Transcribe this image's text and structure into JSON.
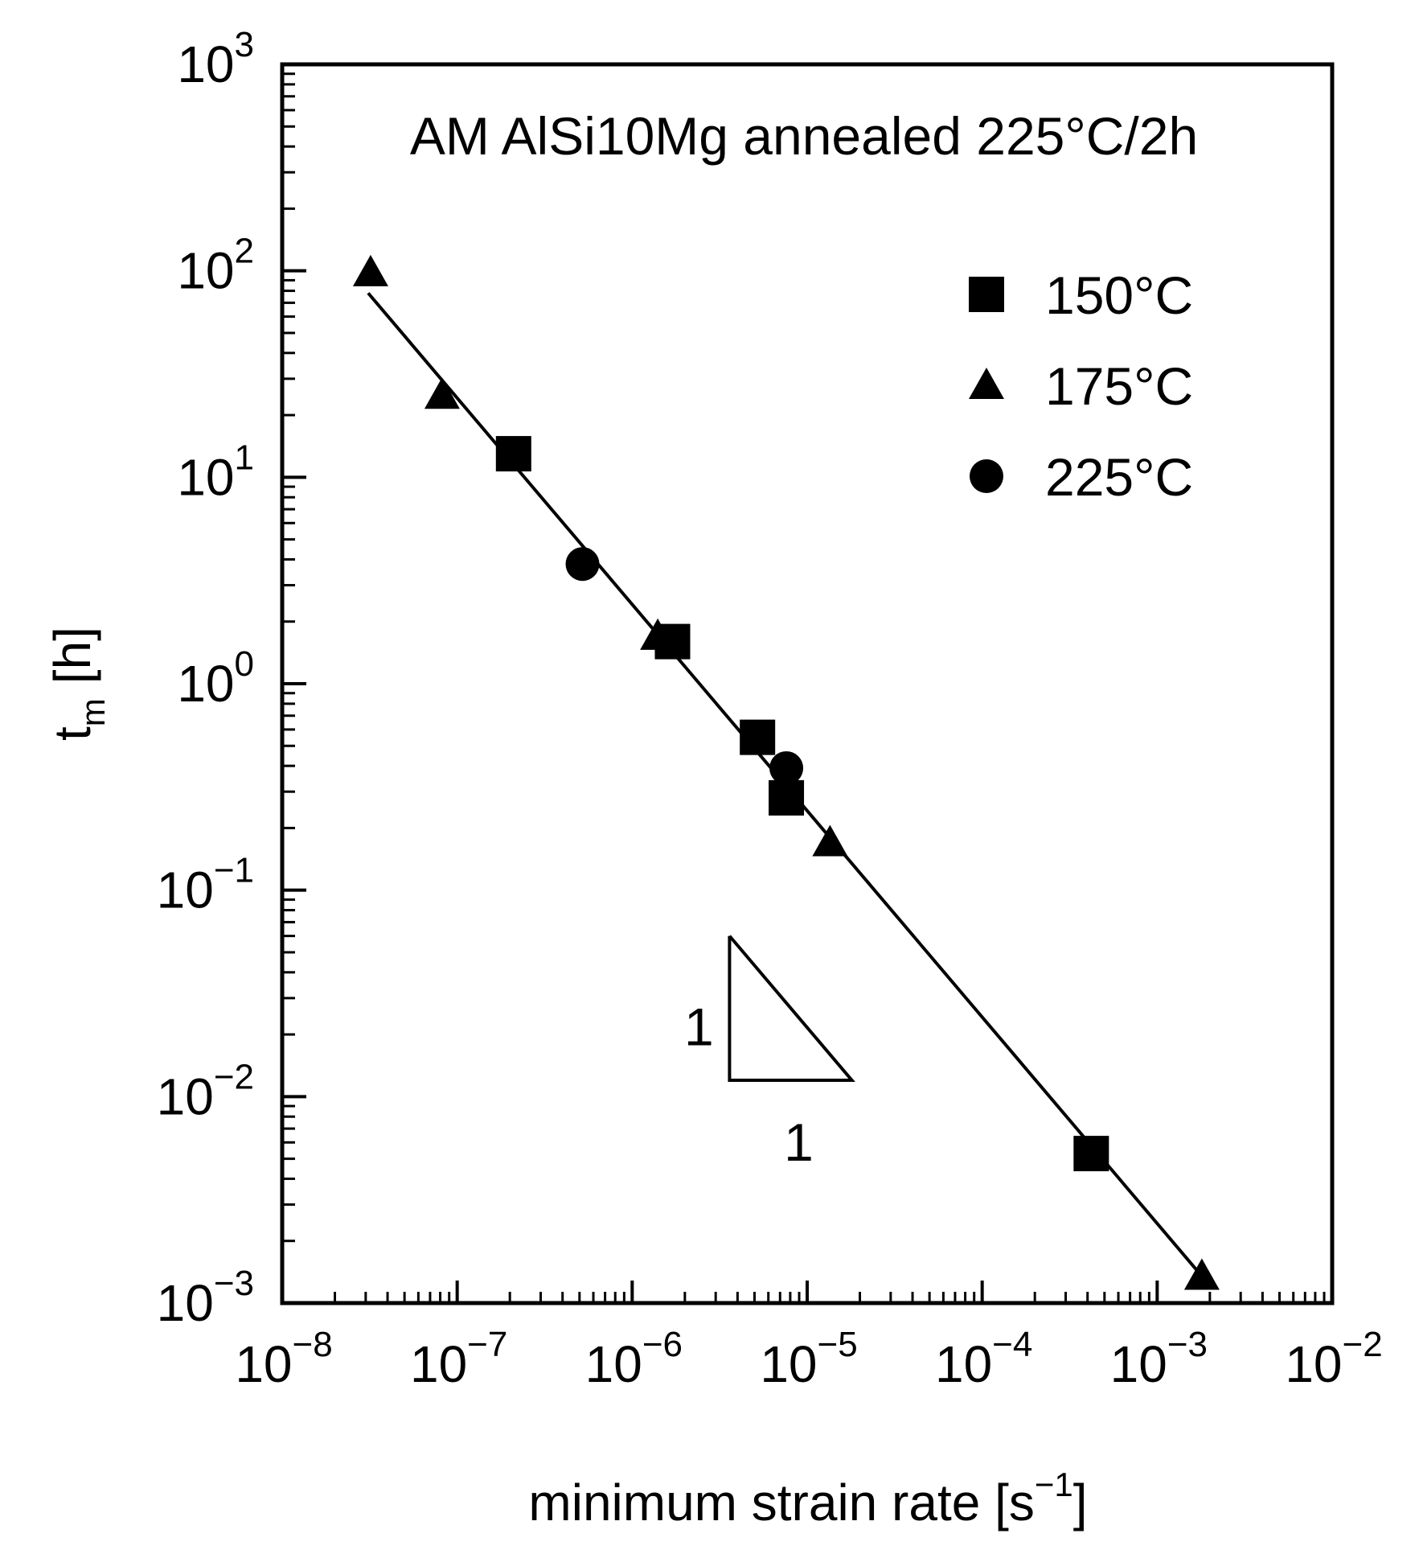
{
  "chart_data": {
    "type": "scatter",
    "title": "AM AlSi10Mg annealed 225°C/2h",
    "xlabel": "minimum strain rate [s⁻¹]",
    "xlabel_base": "minimum strain rate [s",
    "xlabel_exp": "−1",
    "xlabel_close": "]",
    "ylabel_main": "t",
    "ylabel_sub": "m",
    "ylabel_unit": "[h]",
    "x_scale": "log",
    "y_scale": "log",
    "xlim": [
      1e-08,
      0.01
    ],
    "ylim": [
      0.001,
      1000
    ],
    "x_ticks": [
      {
        "value": 1e-08,
        "base": "10",
        "exp": "−8"
      },
      {
        "value": 1e-07,
        "base": "10",
        "exp": "−7"
      },
      {
        "value": 1e-06,
        "base": "10",
        "exp": "−6"
      },
      {
        "value": 1e-05,
        "base": "10",
        "exp": "−5"
      },
      {
        "value": 0.0001,
        "base": "10",
        "exp": "−4"
      },
      {
        "value": 0.001,
        "base": "10",
        "exp": "−3"
      },
      {
        "value": 0.01,
        "base": "10",
        "exp": "−2"
      }
    ],
    "y_ticks": [
      {
        "value": 0.001,
        "base": "10",
        "exp": "−3"
      },
      {
        "value": 0.01,
        "base": "10",
        "exp": "−2"
      },
      {
        "value": 0.1,
        "base": "10",
        "exp": "−1"
      },
      {
        "value": 1,
        "base": "10",
        "exp": "0"
      },
      {
        "value": 10,
        "base": "10",
        "exp": "1"
      },
      {
        "value": 100,
        "base": "10",
        "exp": "2"
      },
      {
        "value": 1000,
        "base": "10",
        "exp": "3"
      }
    ],
    "grid": false,
    "legend_position": "top-right",
    "series": [
      {
        "name": "150°C",
        "marker": "square",
        "points": [
          {
            "x": 2.1e-07,
            "y": 13
          },
          {
            "x": 1.7e-06,
            "y": 1.6
          },
          {
            "x": 5.2e-06,
            "y": 0.55
          },
          {
            "x": 7.6e-06,
            "y": 0.28
          },
          {
            "x": 0.00042,
            "y": 0.0053
          }
        ]
      },
      {
        "name": "175°C",
        "marker": "triangle",
        "points": [
          {
            "x": 3.2e-08,
            "y": 98
          },
          {
            "x": 8.2e-08,
            "y": 25
          },
          {
            "x": 1.4e-06,
            "y": 1.7
          },
          {
            "x": 1.35e-05,
            "y": 0.17
          },
          {
            "x": 0.0018,
            "y": 0.00135
          }
        ]
      },
      {
        "name": "225°C",
        "marker": "circle",
        "points": [
          {
            "x": 5.2e-07,
            "y": 3.8
          },
          {
            "x": 7.6e-06,
            "y": 0.39
          }
        ]
      }
    ],
    "fit_line": {
      "x": [
        3.1e-08,
        0.0018
      ],
      "y": [
        78,
        0.00135
      ]
    },
    "slope_triangle": {
      "x_left": 3.6e-06,
      "x_right": 1.8e-05,
      "y_top": 0.06,
      "y_bottom": 0.012,
      "vertical_label": "1",
      "horizontal_label": "1"
    }
  }
}
